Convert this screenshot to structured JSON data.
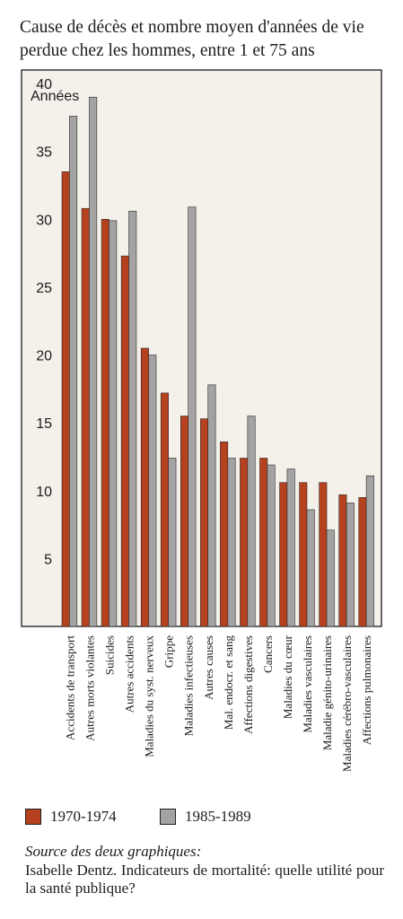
{
  "title": "Cause de décès et nombre moyen d'années de vie perdue chez les hommes, entre 1 et 75 ans",
  "chart_data": {
    "type": "bar",
    "title": "Cause de décès et nombre moyen d'années de vie perdue chez les hommes, entre 1 et 75 ans",
    "ylabel": "Années",
    "xlabel": "",
    "ylim": [
      0,
      41
    ],
    "yticks": [
      5,
      10,
      15,
      20,
      25,
      30,
      35,
      40
    ],
    "grid": false,
    "legend_position": "bottom",
    "categories": [
      "Accidents de transport",
      "Autres morts violantes",
      "Suicides",
      "Autres accidents",
      "Maladies du syst. nerveux",
      "Grippe",
      "Maladies infectieuses",
      "Autres causes",
      "Mal. endocr. et sang",
      "Affections digestives",
      "Cancers",
      "Maladies du cœur",
      "Maladies vasculaires",
      "Maladie génito-urinaires",
      "Maladies cérébro-vasculaires",
      "Affections pulmonaires"
    ],
    "series": [
      {
        "name": "1970-1974",
        "color": "#b5411e",
        "values": [
          33.5,
          30.8,
          30.0,
          27.3,
          20.5,
          17.2,
          15.5,
          15.3,
          13.6,
          12.4,
          12.4,
          10.6,
          10.6,
          10.6,
          9.7,
          9.5
        ]
      },
      {
        "name": "1985-1989",
        "color": "#a3a3a3",
        "values": [
          37.6,
          39.0,
          29.9,
          30.6,
          20.0,
          12.4,
          30.9,
          17.8,
          12.4,
          15.5,
          11.9,
          11.6,
          8.6,
          7.1,
          9.1,
          11.1
        ]
      }
    ]
  },
  "source": {
    "heading": "Source des deux graphiques:",
    "text": "Isabelle Dentz. Indicateurs de mortalité: quelle utilité pour la santé publique?"
  }
}
